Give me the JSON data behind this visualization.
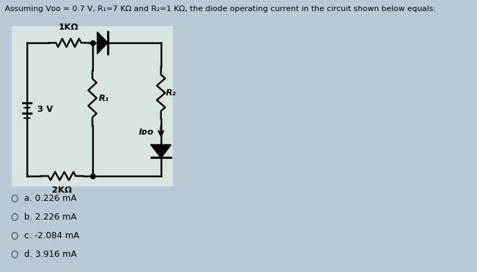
{
  "title": "Assuming Vᴅᴏ = 0.7 V, R₁=7 KΩ and R₂=1 KΩ, the diode operating current in the circuit shown below equals:",
  "bg_color": "#b8c8d4",
  "circuit_bg": "#d8e4e0",
  "options": [
    "a. 0.226 mA",
    "b. 2.226 mA",
    "c. -2.084 mA",
    "d. 3.916 mA"
  ],
  "resistor_top": "1KΩ",
  "resistor_bottom": "2KΩ",
  "resistor_mid": "R₁",
  "resistor_right": "R₂",
  "voltage_label": "3 V",
  "current_label": "Iᴅᴏ"
}
